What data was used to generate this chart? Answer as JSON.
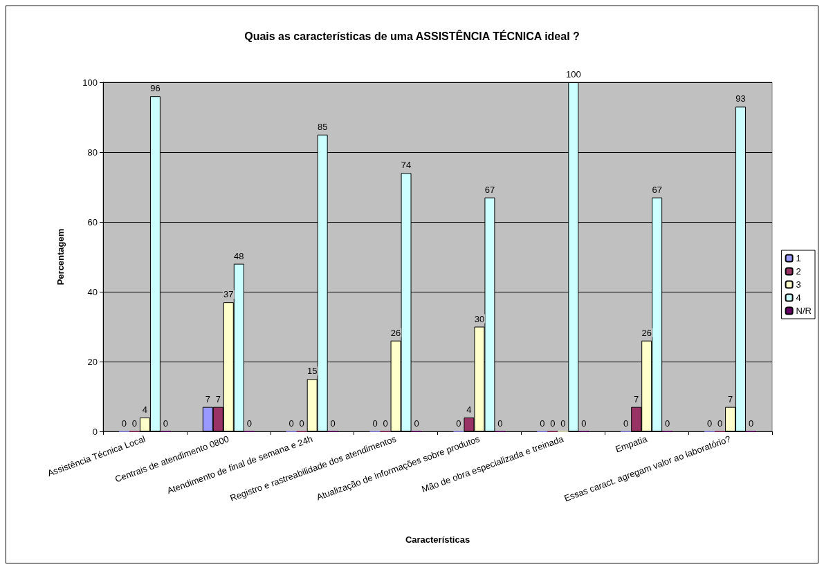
{
  "chart_data": {
    "type": "bar",
    "title": "Quais as características de uma ASSISTÊNCIA TÉCNICA ideal ?",
    "xlabel": "Características",
    "ylabel": "Percentagem",
    "categories": [
      "Assistência Técnica Local",
      "Centrais de atendimento 0800",
      "Atendimento de final de semana e 24h",
      "Registro e rastreabilidade dos atendimentos",
      "Atualização de informações sobre produtos",
      "Mão de obra especializada e treinada",
      "Empatia",
      "Essas caract. agregam valor ao laboratório?"
    ],
    "series": [
      {
        "name": "1",
        "color": "#9999ff",
        "values": [
          0,
          7,
          0,
          0,
          0,
          0,
          0,
          0
        ]
      },
      {
        "name": "2",
        "color": "#993366",
        "values": [
          0,
          7,
          0,
          0,
          4,
          0,
          7,
          0
        ]
      },
      {
        "name": "3",
        "color": "#ffffcc",
        "values": [
          4,
          37,
          15,
          26,
          30,
          0,
          26,
          7
        ]
      },
      {
        "name": "4",
        "color": "#ccffff",
        "values": [
          96,
          48,
          85,
          74,
          67,
          100,
          67,
          93
        ]
      },
      {
        "name": "N/R",
        "color": "#660066",
        "values": [
          0,
          0,
          0,
          0,
          0,
          0,
          0,
          0
        ]
      }
    ],
    "ylim": [
      0,
      100
    ],
    "yticks": [
      0,
      20,
      40,
      60,
      80,
      100
    ],
    "grid": "y",
    "legend": "right",
    "data_labels": true
  }
}
